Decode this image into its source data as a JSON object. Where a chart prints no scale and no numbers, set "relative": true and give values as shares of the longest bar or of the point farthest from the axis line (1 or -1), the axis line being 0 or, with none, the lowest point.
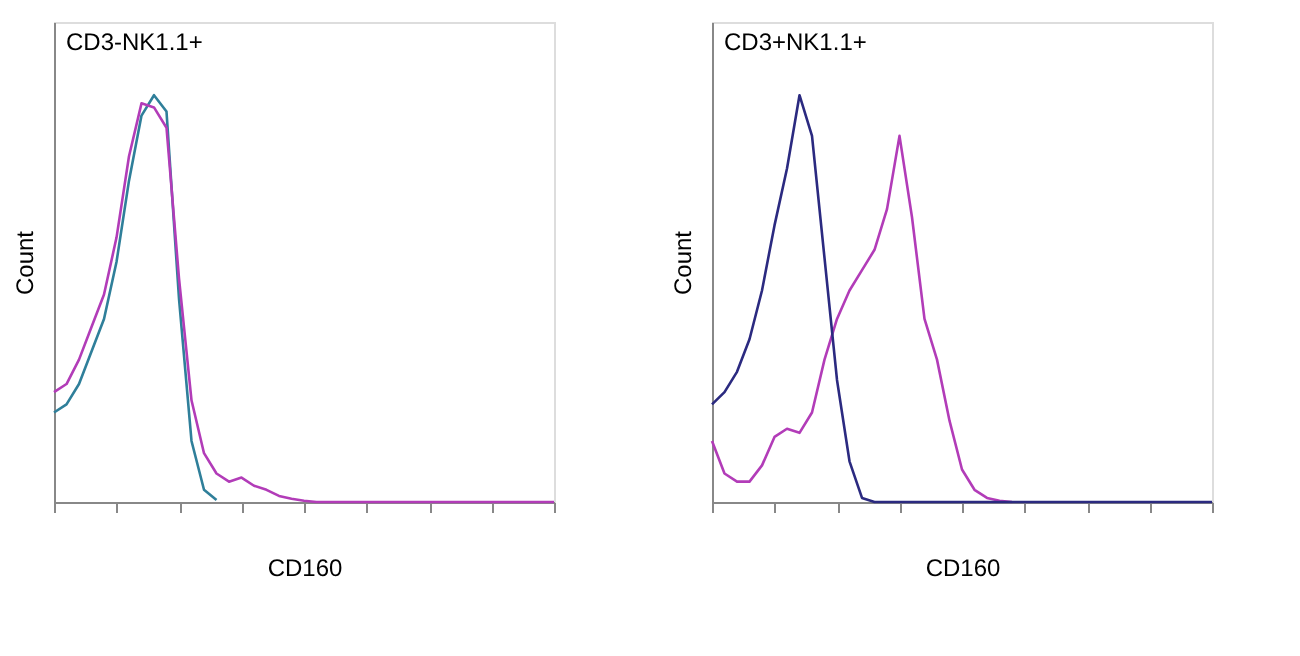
{
  "chart_data": [
    {
      "type": "line",
      "title": "CD3-NK1.1+",
      "xlabel": "CD160",
      "ylabel": "Count",
      "relative": true,
      "tick_labels": false,
      "categories": [
        null,
        null,
        null,
        null,
        null,
        null,
        null,
        null,
        null,
        null,
        null,
        null,
        null,
        null,
        null,
        null,
        null,
        null,
        null,
        null,
        null,
        null,
        null,
        null,
        null,
        null,
        null,
        null,
        null,
        null,
        null,
        null,
        null,
        null,
        null,
        null,
        null,
        null,
        null,
        null,
        null
      ],
      "series": [
        {
          "color": "#2f7f9a",
          "values": [
            0.22,
            0.24,
            0.29,
            0.37,
            0.45,
            0.59,
            0.79,
            0.95,
            1.0,
            0.96,
            0.5,
            0.15,
            0.03,
            0.005,
            null,
            null,
            null,
            null,
            null,
            null,
            null,
            null,
            null,
            null,
            null,
            null,
            null,
            null,
            null,
            null,
            null,
            null,
            null,
            null,
            null,
            null,
            null,
            null,
            null,
            null,
            null
          ]
        },
        {
          "color": "#b23cb8",
          "values": [
            0.27,
            0.29,
            0.35,
            0.43,
            0.51,
            0.65,
            0.85,
            0.98,
            0.97,
            0.92,
            0.55,
            0.25,
            0.12,
            0.07,
            0.05,
            0.06,
            0.04,
            0.03,
            0.015,
            0.008,
            0.003,
            0,
            0,
            0,
            0,
            0,
            0,
            0,
            0,
            0,
            0,
            0,
            0,
            0,
            0,
            0,
            0,
            0,
            0,
            0,
            0
          ]
        }
      ]
    },
    {
      "type": "line",
      "title": "CD3+NK1.1+",
      "xlabel": "CD160",
      "ylabel": "Count",
      "relative": true,
      "tick_labels": false,
      "categories": [
        null,
        null,
        null,
        null,
        null,
        null,
        null,
        null,
        null,
        null,
        null,
        null,
        null,
        null,
        null,
        null,
        null,
        null,
        null,
        null,
        null,
        null,
        null,
        null,
        null,
        null,
        null,
        null,
        null,
        null,
        null,
        null,
        null,
        null,
        null,
        null,
        null,
        null,
        null,
        null,
        null
      ],
      "series": [
        {
          "color": "#b23cb8",
          "values": [
            0.15,
            0.07,
            0.05,
            0.05,
            0.09,
            0.16,
            0.18,
            0.17,
            0.22,
            0.35,
            0.45,
            0.52,
            0.57,
            0.62,
            0.72,
            0.9,
            0.7,
            0.45,
            0.35,
            0.2,
            0.08,
            0.03,
            0.01,
            0.003,
            0,
            null,
            null,
            null,
            null,
            null,
            null,
            null,
            null,
            null,
            null,
            null,
            null,
            null,
            null,
            null,
            null
          ]
        },
        {
          "color": "#2b2a80",
          "values": [
            0.24,
            0.27,
            0.32,
            0.4,
            0.52,
            0.68,
            0.82,
            1.0,
            0.9,
            0.6,
            0.3,
            0.1,
            0.01,
            0,
            0,
            0,
            0,
            0,
            0,
            0,
            0,
            0,
            0,
            0,
            0,
            0,
            0,
            0,
            0,
            0,
            0,
            0,
            0,
            0,
            0,
            0,
            0,
            0,
            0,
            0,
            0
          ]
        }
      ]
    }
  ]
}
